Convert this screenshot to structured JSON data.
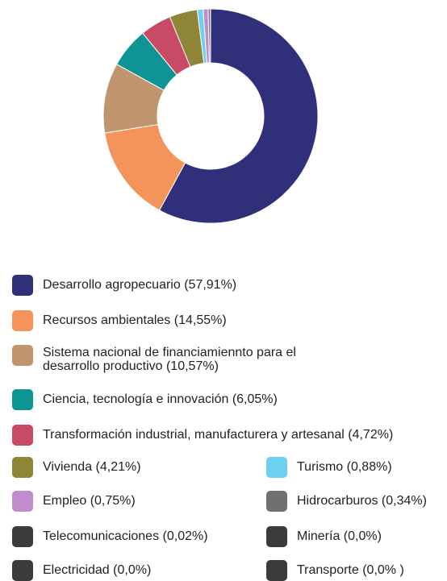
{
  "chart_data": {
    "type": "pie",
    "donut": true,
    "categories": [
      "Desarrollo agropecuario (57,91%)",
      "Recursos ambientales (14,55%)",
      "Sistema nacional de financiamiennto para el desarrollo productivo (10,57%)",
      "Ciencia, tecnología e innovación (6,05%)",
      "Transformación industrial, manufacturera y artesanal (4,72%)",
      "Vivienda (4,21%)",
      "Turismo (0,88%)",
      "Empleo (0,75%)",
      "Hidrocarburos (0,34%)",
      "Telecomunicaciones (0,02%)",
      "Minería (0,0%)",
      "Electricidad (0,0%)",
      "Transporte (0,0% )"
    ],
    "values": [
      57.91,
      14.55,
      10.57,
      6.05,
      4.72,
      4.21,
      0.88,
      0.75,
      0.34,
      0.02,
      0,
      0,
      0
    ],
    "colors": [
      "#30307a",
      "#f4935a",
      "#c0956e",
      "#0e9494",
      "#c84a66",
      "#8f8536",
      "#6dd0f0",
      "#c08ccc",
      "#707073",
      "#3b3b3b",
      "#3b3b3b",
      "#3b3b3b",
      "#3b3b3b"
    ]
  }
}
